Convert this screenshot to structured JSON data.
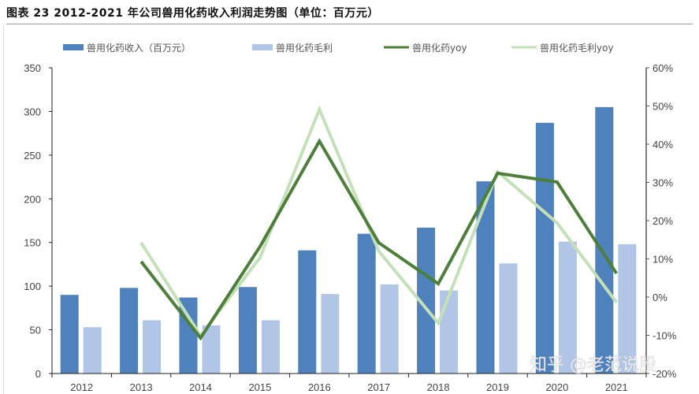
{
  "title": "图表 23 2012-2021 年公司兽用化药收入利润走势图（单位：百万元）",
  "watermark": "知乎 @老范说股",
  "colors": {
    "revenue_bar": "#4f81bd",
    "gross_profit_bar": "#b1c5e7",
    "revenue_yoy_line": "#4e7f3a",
    "gross_profit_yoy_line": "#c4e0b8",
    "axis": "#222222"
  },
  "legend": [
    {
      "label": "兽用化药收入（百万元）",
      "type": "bar",
      "color": "#4f81bd"
    },
    {
      "label": "兽用化药毛利",
      "type": "bar",
      "color": "#b1c5e7"
    },
    {
      "label": "兽用化药yoy",
      "type": "line",
      "color": "#4e7f3a"
    },
    {
      "label": "兽用化药毛利yoy",
      "type": "line",
      "color": "#c4e0b8"
    }
  ],
  "chart_data": {
    "type": "bar",
    "title": "图表 23 2012-2021 年公司兽用化药收入利润走势图（单位：百万元）",
    "xlabel": "",
    "ylabel": "百万元",
    "y2label": "yoy",
    "categories": [
      "2012",
      "2013",
      "2014",
      "2015",
      "2016",
      "2017",
      "2018",
      "2019",
      "2020",
      "2021"
    ],
    "ylim": [
      0,
      350
    ],
    "yticks": [
      0,
      50,
      100,
      150,
      200,
      250,
      300,
      350
    ],
    "y2lim": [
      -20,
      60
    ],
    "y2ticks": [
      "-20%",
      "-10%",
      "0%",
      "10%",
      "20%",
      "30%",
      "40%",
      "50%",
      "60%"
    ],
    "grid": false,
    "legend_position": "top",
    "series": [
      {
        "name": "兽用化药收入（百万元）",
        "type": "bar",
        "axis": "left",
        "values": [
          90,
          98,
          87,
          99,
          141,
          160,
          167,
          220,
          287,
          305
        ]
      },
      {
        "name": "兽用化药毛利",
        "type": "bar",
        "axis": "left",
        "values": [
          53,
          61,
          55,
          61,
          91,
          102,
          95,
          126,
          151,
          148
        ]
      },
      {
        "name": "兽用化药yoy",
        "type": "line",
        "axis": "right",
        "unit": "%",
        "values": [
          null,
          9.3,
          -10.7,
          13.2,
          40.8,
          14.2,
          3.5,
          32.4,
          30.1,
          6.2
        ]
      },
      {
        "name": "兽用化药毛利yoy",
        "type": "line",
        "axis": "right",
        "unit": "%",
        "values": [
          null,
          14.2,
          -10.1,
          10.3,
          49.1,
          12.0,
          -6.8,
          32.8,
          19.4,
          -1.4
        ]
      }
    ]
  }
}
